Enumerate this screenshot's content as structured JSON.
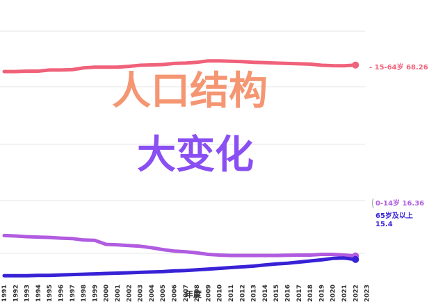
{
  "chart_data": {
    "type": "line",
    "xlabel": "年度",
    "x": [
      1991,
      1992,
      1993,
      1994,
      1995,
      1996,
      1997,
      1998,
      1999,
      2000,
      2001,
      2002,
      2003,
      2004,
      2005,
      2006,
      2007,
      2008,
      2009,
      2010,
      2011,
      2012,
      2013,
      2014,
      2015,
      2016,
      2017,
      2018,
      2019,
      2020,
      2021,
      2022,
      2023
    ],
    "series": [
      {
        "name": "15-64岁",
        "color": "#f0617a",
        "end_label": "15-64岁 68.26",
        "values": [
          66.5,
          66.5,
          66.6,
          66.6,
          66.9,
          66.9,
          67.0,
          67.5,
          67.7,
          67.7,
          67.7,
          67.9,
          68.2,
          68.3,
          68.4,
          68.7,
          68.8,
          69.0,
          69.4,
          69.4,
          69.3,
          69.2,
          69.0,
          68.9,
          68.8,
          68.7,
          68.6,
          68.5,
          68.2,
          68.1,
          68.05,
          68.26,
          null
        ]
      },
      {
        "name": "0-14岁",
        "color": "#b15ce0",
        "end_label": "0-14岁 16.36",
        "values": [
          21.9,
          21.8,
          21.6,
          21.5,
          21.4,
          21.2,
          21.1,
          20.7,
          20.6,
          19.5,
          19.4,
          19.2,
          19.0,
          18.6,
          18.1,
          17.7,
          17.5,
          17.2,
          16.8,
          16.6,
          16.5,
          16.5,
          16.5,
          16.5,
          16.5,
          16.55,
          16.6,
          16.6,
          16.8,
          16.8,
          16.6,
          16.36,
          null
        ]
      },
      {
        "name": "65岁及以上",
        "color": "#3722d6",
        "end_label": "65岁及以上",
        "end_value": "15.4",
        "values": [
          11.0,
          11.0,
          11.0,
          11.1,
          11.1,
          11.2,
          11.3,
          11.4,
          11.5,
          11.6,
          11.7,
          11.8,
          11.9,
          12.0,
          12.1,
          12.3,
          12.4,
          12.6,
          12.8,
          13.0,
          13.2,
          13.4,
          13.6,
          13.9,
          14.2,
          14.4,
          14.7,
          15.0,
          15.3,
          15.7,
          15.8,
          15.4,
          null
        ]
      }
    ],
    "headline_line1": "人口结构",
    "headline_line2": "大变化",
    "headline_colors": [
      "#f59673",
      "#8a4ff2"
    ]
  }
}
